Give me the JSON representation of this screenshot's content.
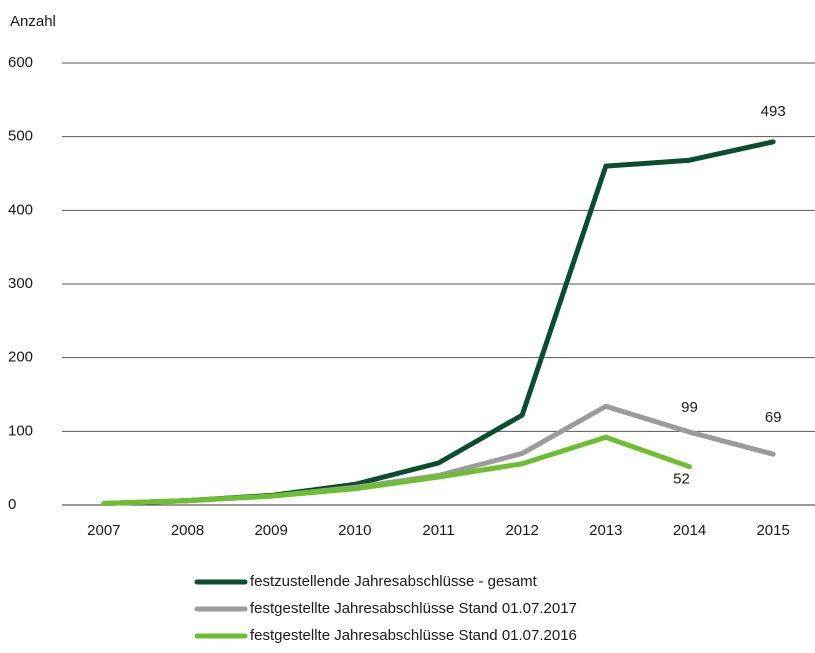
{
  "chart_data": {
    "type": "line",
    "y_label": "Anzahl",
    "categories": [
      "2007",
      "2008",
      "2009",
      "2010",
      "2011",
      "2012",
      "2013",
      "2014",
      "2015"
    ],
    "series": [
      {
        "name": "festzustellende Jahresabschlüsse - gesamt",
        "color": "#0b4d2f",
        "values": [
          2,
          6,
          13,
          28,
          57,
          122,
          460,
          468,
          493
        ],
        "value_labels": [
          null,
          null,
          null,
          null,
          null,
          null,
          null,
          null,
          "493"
        ]
      },
      {
        "name": "festgestellte Jahresabschlüsse Stand 01.07.2017",
        "color": "#9b9b9b",
        "values": [
          2,
          6,
          12,
          24,
          40,
          70,
          134,
          99,
          69
        ],
        "value_labels": [
          null,
          null,
          null,
          null,
          null,
          null,
          null,
          "99",
          "69"
        ]
      },
      {
        "name": "festgestellte Jahresabschlüsse Stand 01.07.2016",
        "color": "#6cbf2e",
        "values": [
          2,
          6,
          12,
          22,
          38,
          56,
          92,
          52,
          null
        ],
        "value_labels": [
          null,
          null,
          null,
          null,
          null,
          null,
          null,
          "52",
          null
        ]
      }
    ],
    "ylim": [
      0,
      600
    ],
    "yticks": [
      0,
      100,
      200,
      300,
      400,
      500,
      600
    ],
    "grid": true
  }
}
